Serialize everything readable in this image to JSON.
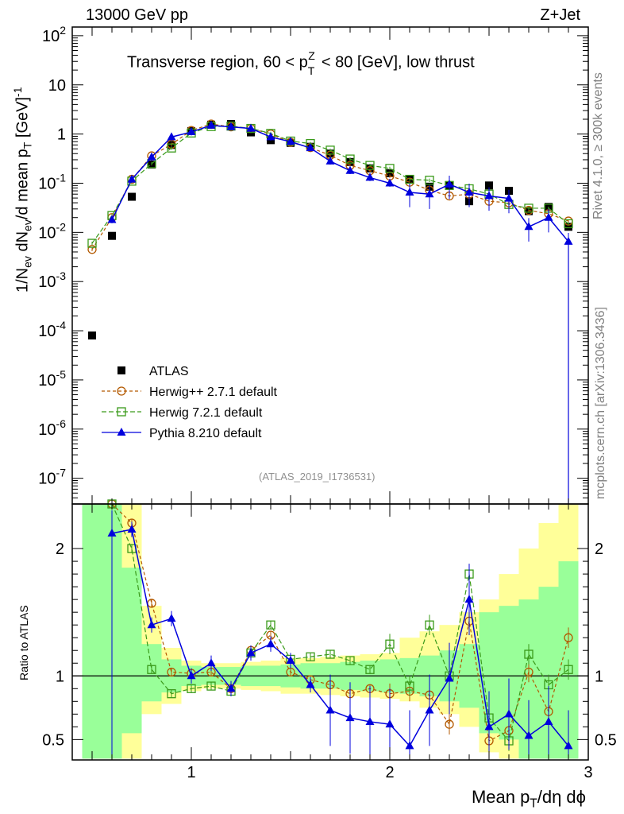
{
  "header": {
    "energy": "13000 GeV pp",
    "process": "Z+Jet"
  },
  "side": {
    "rivet": "Rivet 4.1.0, ≥ 300k events",
    "site": "mcplots.cern.ch [arXiv:1306.3436]"
  },
  "chart_data": [
    {
      "type": "line",
      "panel": "main",
      "title": "Transverse region, 60 < pTZ < 80 [GeV], low thrust",
      "analysis": "(ATLAS_2019_I1736531)",
      "ylabel": "1/Nev dNev/d mean pT [GeV]-1",
      "yscale": "log",
      "ylim": [
        3e-08,
        150
      ],
      "xlim": [
        0.4,
        3.0
      ],
      "ytick_labels": [
        "10^2",
        "10",
        "1",
        "10^-1",
        "10^-2",
        "10^-3",
        "10^-4",
        "10^-5",
        "10^-6",
        "10^-7"
      ],
      "x": [
        0.5,
        0.6,
        0.7,
        0.8,
        0.9,
        1.0,
        1.1,
        1.2,
        1.3,
        1.4,
        1.5,
        1.6,
        1.7,
        1.8,
        1.9,
        2.0,
        2.1,
        2.2,
        2.3,
        2.4,
        2.5,
        2.6,
        2.7,
        2.8,
        2.9
      ],
      "series": [
        {
          "name": "ATLAS",
          "marker": "square",
          "color": "#000000",
          "values": [
            8e-05,
            0.0085,
            0.053,
            0.24,
            0.6,
            1.15,
            1.55,
            1.6,
            1.08,
            0.75,
            0.66,
            0.55,
            0.4,
            0.27,
            0.2,
            0.16,
            0.12,
            0.085,
            0.09,
            0.043,
            0.09,
            0.07,
            0.027,
            0.033,
            0.013
          ]
        },
        {
          "name": "Herwig++ 2.7.1 default",
          "marker": "circle-open",
          "color": "#b35900",
          "dash": "4,3",
          "values": [
            0.0045,
            0.02,
            0.12,
            0.36,
            0.62,
            1.18,
            1.6,
            1.4,
            1.3,
            1.0,
            0.68,
            0.53,
            0.37,
            0.23,
            0.18,
            0.14,
            0.105,
            0.072,
            0.055,
            0.06,
            0.043,
            0.04,
            0.028,
            0.024,
            0.017
          ]
        },
        {
          "name": "Herwig 7.2.1 default",
          "marker": "square-open",
          "color": "#3a9a1a",
          "dash": "6,3",
          "values": [
            0.006,
            0.022,
            0.11,
            0.25,
            0.52,
            1.05,
            1.42,
            1.45,
            1.3,
            1.03,
            0.72,
            0.64,
            0.47,
            0.31,
            0.23,
            0.2,
            0.12,
            0.115,
            0.09,
            0.077,
            0.06,
            0.037,
            0.031,
            0.031,
            0.015
          ]
        },
        {
          "name": "Pythia 8.210 default",
          "marker": "triangle",
          "color": "#0000dd",
          "dash": "",
          "values": [
            null,
            0.018,
            0.12,
            0.34,
            0.87,
            1.1,
            1.5,
            1.4,
            1.3,
            0.87,
            0.7,
            0.52,
            0.28,
            0.18,
            0.13,
            0.1,
            0.065,
            0.06,
            0.095,
            0.065,
            0.055,
            0.049,
            0.013,
            0.02,
            0.0065
          ]
        }
      ]
    },
    {
      "type": "line",
      "panel": "ratio",
      "ylabel": "Ratio to ATLAS",
      "xlabel": "Mean pT/dη dϕ",
      "ylim": [
        0.34,
        2.35
      ],
      "xlim": [
        0.4,
        3.0
      ],
      "xticks": [
        1,
        2,
        3
      ],
      "xtick_labels": [
        "1",
        "2",
        "3"
      ],
      "yticks": [
        0.5,
        1,
        2
      ],
      "ytick_labels": [
        "0.5",
        "1",
        "2"
      ],
      "band_edges": [
        0.45,
        0.55,
        0.65,
        0.75,
        0.85,
        0.95,
        1.05,
        1.15,
        1.25,
        1.35,
        1.45,
        1.55,
        1.65,
        1.75,
        1.85,
        1.95,
        2.05,
        2.15,
        2.25,
        2.35,
        2.45,
        2.55,
        2.65,
        2.75,
        2.85,
        2.95
      ],
      "band_green": [
        [
          0.35,
          2.35
        ],
        [
          0.35,
          2.35
        ],
        [
          0.55,
          1.85
        ],
        [
          0.8,
          1.25
        ],
        [
          0.87,
          1.13
        ],
        [
          0.92,
          1.08
        ],
        [
          0.93,
          1.07
        ],
        [
          0.93,
          1.07
        ],
        [
          0.92,
          1.08
        ],
        [
          0.92,
          1.08
        ],
        [
          0.91,
          1.09
        ],
        [
          0.9,
          1.1
        ],
        [
          0.9,
          1.1
        ],
        [
          0.89,
          1.11
        ],
        [
          0.88,
          1.12
        ],
        [
          0.87,
          1.13
        ],
        [
          0.86,
          1.14
        ],
        [
          0.84,
          1.16
        ],
        [
          0.8,
          1.2
        ],
        [
          0.75,
          1.25
        ],
        [
          0.55,
          1.5
        ],
        [
          0.5,
          1.55
        ],
        [
          0.35,
          1.6
        ],
        [
          0.35,
          1.7
        ],
        [
          0.35,
          1.9
        ]
      ],
      "band_yellow": [
        [
          0.35,
          2.35
        ],
        [
          0.35,
          2.35
        ],
        [
          0.35,
          2.35
        ],
        [
          0.7,
          1.55
        ],
        [
          0.78,
          1.22
        ],
        [
          0.88,
          1.12
        ],
        [
          0.9,
          1.1
        ],
        [
          0.9,
          1.1
        ],
        [
          0.89,
          1.11
        ],
        [
          0.88,
          1.12
        ],
        [
          0.86,
          1.14
        ],
        [
          0.86,
          1.14
        ],
        [
          0.85,
          1.15
        ],
        [
          0.84,
          1.16
        ],
        [
          0.83,
          1.17
        ],
        [
          0.82,
          1.18
        ],
        [
          0.8,
          1.3
        ],
        [
          0.75,
          1.35
        ],
        [
          0.7,
          1.4
        ],
        [
          0.6,
          1.5
        ],
        [
          0.4,
          1.6
        ],
        [
          0.35,
          1.8
        ],
        [
          0.35,
          2.0
        ],
        [
          0.35,
          2.2
        ],
        [
          0.35,
          2.35
        ]
      ],
      "series": [
        {
          "name": "Herwig++ 2.7.1 default",
          "values": [
            null,
            2.35,
            2.2,
            1.57,
            1.03,
            1.02,
            1.03,
            0.9,
            1.2,
            1.32,
            1.03,
            0.97,
            0.93,
            0.86,
            0.9,
            0.86,
            0.88,
            0.85,
            0.62,
            1.43,
            0.49,
            0.57,
            1.03,
            0.72,
            1.3
          ]
        },
        {
          "name": "Herwig 7.2.1 default",
          "values": [
            null,
            2.35,
            2.0,
            1.05,
            0.86,
            0.9,
            0.92,
            0.88,
            1.18,
            1.4,
            1.13,
            1.15,
            1.17,
            1.12,
            1.05,
            1.25,
            0.92,
            1.4,
            1.0,
            1.8,
            0.67,
            0.49,
            1.17,
            0.93,
            1.05
          ]
        },
        {
          "name": "Pythia 8.210 default",
          "values": [
            null,
            2.12,
            2.15,
            1.4,
            1.45,
            1.0,
            1.1,
            0.9,
            1.18,
            1.25,
            1.12,
            0.93,
            0.73,
            0.67,
            0.64,
            0.62,
            0.45,
            0.73,
            0.98,
            1.6,
            0.6,
            0.7,
            0.53,
            0.64,
            0.45
          ]
        }
      ]
    }
  ]
}
